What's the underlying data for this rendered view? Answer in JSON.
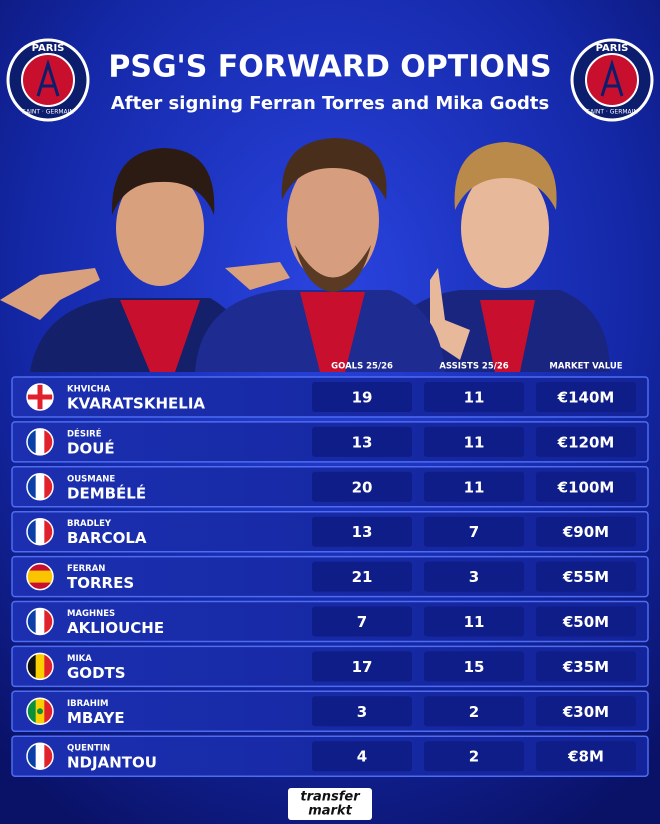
{
  "header": {
    "title": "PSG'S FORWARD OPTIONS",
    "subtitle": "After signing Ferran Torres and Mika Godts"
  },
  "crest": {
    "top": "PARIS",
    "bottom": "SAINT · GERMAIN"
  },
  "table": {
    "columns": [
      "GOALS 25/26",
      "ASSISTS 25/26",
      "MARKET VALUE"
    ],
    "rows": [
      [
        "KHVICHA",
        "KVARATSKHELIA",
        "19",
        "11",
        "€140M"
      ],
      [
        "DÉSIRÉ",
        "DOUÉ",
        "13",
        "11",
        "€120M"
      ],
      [
        "OUSMANE",
        "DEMBÉLÉ",
        "20",
        "11",
        "€100M"
      ],
      [
        "BRADLEY",
        "BARCOLA",
        "13",
        "7",
        "€90M"
      ],
      [
        "FERRAN",
        "TORRES",
        "21",
        "3",
        "€55M"
      ],
      [
        "MAGHNES",
        "AKLIOUCHE",
        "7",
        "11",
        "€50M"
      ],
      [
        "MIKA",
        "GODTS",
        "17",
        "15",
        "€35M"
      ],
      [
        "IBRAHIM",
        "MBAYE",
        "3",
        "2",
        "€30M"
      ],
      [
        "QUENTIN",
        "NDJANTOU",
        "4",
        "2",
        "€8M"
      ]
    ]
  },
  "footer": {
    "brand_top": "transfer",
    "brand_bottom": "markt"
  }
}
